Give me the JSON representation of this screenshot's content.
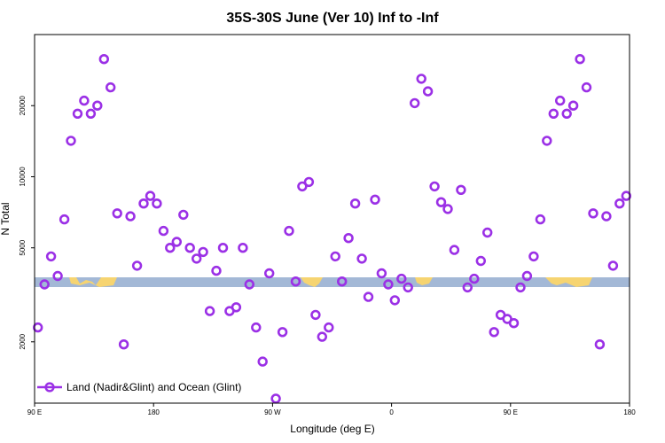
{
  "chart_data": {
    "type": "scatter",
    "title": "35S-30S June (Ver 10)   Inf to -Inf",
    "xlabel": "Longitude (deg E)",
    "ylabel": "N Total",
    "x_ticks": [
      {
        "value": 90,
        "label": "90 E"
      },
      {
        "value": 180,
        "label": "180"
      },
      {
        "value": 270,
        "label": "90 W"
      },
      {
        "value": 360,
        "label": "0"
      },
      {
        "value": 450,
        "label": "90 E"
      },
      {
        "value": 540,
        "label": "180"
      }
    ],
    "y_ticks": [
      {
        "value": 2000,
        "label": "2000"
      },
      {
        "value": 5000,
        "label": "5000"
      },
      {
        "value": 10000,
        "label": "10000"
      },
      {
        "value": 20000,
        "label": "20000"
      }
    ],
    "xlim": [
      90,
      540
    ],
    "ylim": [
      1100,
      40000
    ],
    "y_scale": "log",
    "legend": {
      "label": "Land (Nadir&Glint) and Ocean (Glint)",
      "position": "bottom-left"
    },
    "colors": {
      "series": "#9b30e6",
      "ocean_band": "#a3b8d6",
      "land": "#f6d471",
      "frame": "#000000"
    },
    "series": [
      {
        "name": "Land (Nadir&Glint) and Ocean (Glint)",
        "x": [
          92.5,
          97.5,
          102.5,
          107.5,
          112.5,
          117.5,
          122.5,
          127.5,
          132.5,
          137.5,
          142.5,
          147.5,
          152.5,
          157.5,
          162.5,
          167.5,
          172.5,
          177.5,
          182.5,
          187.5,
          192.5,
          197.5,
          202.5,
          207.5,
          212.5,
          217.5,
          222.5,
          227.5,
          232.5,
          237.5,
          242.5,
          247.5,
          252.5,
          257.5,
          262.5,
          267.5,
          272.5,
          277.5,
          282.5,
          287.5,
          292.5,
          297.5,
          302.5,
          307.5,
          312.5,
          317.5,
          322.5,
          327.5,
          332.5,
          337.5,
          342.5,
          347.5,
          352.5,
          357.5,
          362.5,
          367.5,
          372.5,
          377.5,
          382.5,
          387.5,
          392.5,
          397.5,
          402.5,
          407.5,
          412.5,
          417.5,
          422.5,
          427.5,
          432.5,
          437.5,
          442.5,
          447.5,
          452.5,
          457.5,
          462.5,
          467.5,
          472.5,
          477.5,
          482.5,
          487.5,
          492.5,
          497.5,
          502.5,
          507.5,
          512.5,
          517.5,
          522.5,
          527.5,
          532.5,
          537.5
        ],
        "y": [
          2300,
          3500,
          4600,
          3800,
          6600,
          14200,
          18500,
          21000,
          18500,
          20000,
          31500,
          23900,
          7000,
          1950,
          6800,
          4200,
          7700,
          8300,
          7700,
          5900,
          5000,
          5300,
          6900,
          5000,
          4500,
          4800,
          2700,
          4000,
          5000,
          2700,
          2800,
          5000,
          3500,
          2300,
          1650,
          3900,
          1150,
          2200,
          5900,
          3600,
          9100,
          9500,
          2600,
          2100,
          2300,
          4600,
          3600,
          5500,
          7700,
          4500,
          3100,
          8000,
          3900,
          3500,
          3000,
          3700,
          3400,
          20500,
          26000,
          23000,
          9100,
          7800,
          7300,
          4900,
          8800,
          3400,
          3700,
          4400,
          5800,
          2200,
          2600,
          2500,
          2400,
          3400,
          3800,
          4600,
          6600,
          14200,
          18500,
          21000,
          18500,
          20000,
          31500,
          23900,
          7000,
          1950,
          6800,
          4200,
          7700,
          8300
        ]
      }
    ]
  }
}
